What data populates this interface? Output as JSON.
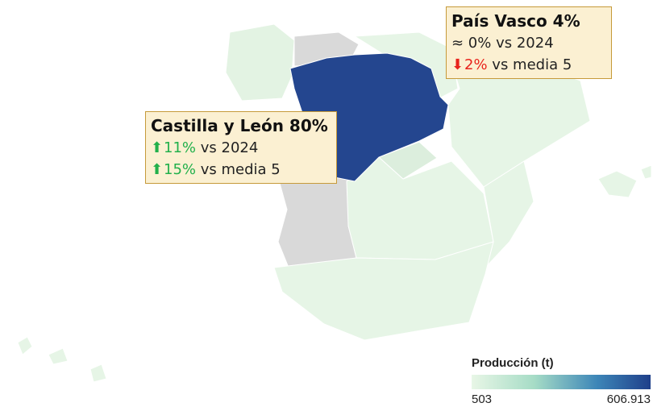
{
  "annotations": [
    {
      "title": "Castilla y León 80%",
      "lines": [
        {
          "trend": "up",
          "value": "11%",
          "text": "vs 2024"
        },
        {
          "trend": "up",
          "value": "15%",
          "text": "vs media 5"
        }
      ]
    },
    {
      "title": "País Vasco 4%",
      "lines": [
        {
          "trend": "flat",
          "value": "≈ 0%",
          "text": "vs 2024"
        },
        {
          "trend": "down",
          "value": "2%",
          "text": "vs media 5"
        }
      ]
    }
  ],
  "legend": {
    "title": "Producción (t)",
    "min": "503",
    "max": "606.913"
  }
}
